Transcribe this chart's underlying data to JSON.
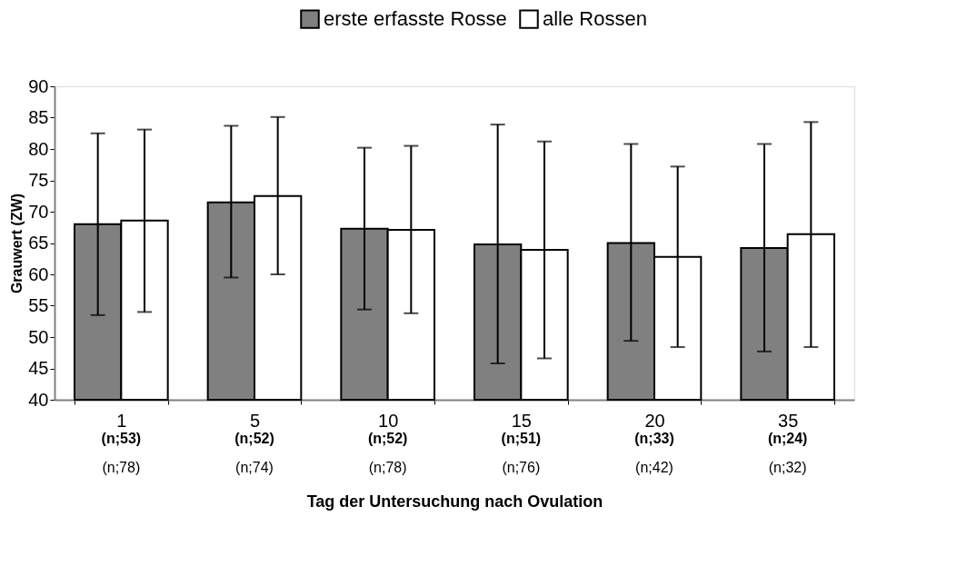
{
  "chart_data": {
    "type": "bar",
    "xlabel": "Tag der Untersuchung nach Ovulation",
    "ylabel": "Grauwert (ZW)",
    "categories": [
      "1",
      "5",
      "10",
      "15",
      "20",
      "35"
    ],
    "series": [
      {
        "name": "erste erfasste Rosse",
        "color": "#808080",
        "values": [
          68.0,
          71.5,
          67.3,
          64.8,
          65.0,
          64.2
        ],
        "errors": [
          [
            53.5,
            82.5
          ],
          [
            59.5,
            83.7
          ],
          [
            54.4,
            80.2
          ],
          [
            45.8,
            83.9
          ],
          [
            49.4,
            80.8
          ],
          [
            47.7,
            80.8
          ]
        ]
      },
      {
        "name": "alle Rossen",
        "color": "#ffffff",
        "values": [
          68.6,
          72.5,
          67.1,
          63.9,
          62.8,
          66.4
        ],
        "errors": [
          [
            54.0,
            83.1
          ],
          [
            60.0,
            85.1
          ],
          [
            53.8,
            80.5
          ],
          [
            46.6,
            81.2
          ],
          [
            48.4,
            77.2
          ],
          [
            48.4,
            84.3
          ]
        ]
      }
    ],
    "ylim": [
      40,
      90
    ],
    "yticks": [
      40,
      45,
      50,
      55,
      60,
      65,
      70,
      75,
      80,
      85,
      90
    ],
    "grid": false,
    "legend": "top",
    "annotations": [
      "(n;53)",
      "(n;52)",
      "(n;52)",
      "(n;51)",
      "(n;33)",
      "(n;24)",
      "(n;78)",
      "(n;74)",
      "(n;78)",
      "(n;76)",
      "(n;42)",
      "(n;32)"
    ]
  }
}
